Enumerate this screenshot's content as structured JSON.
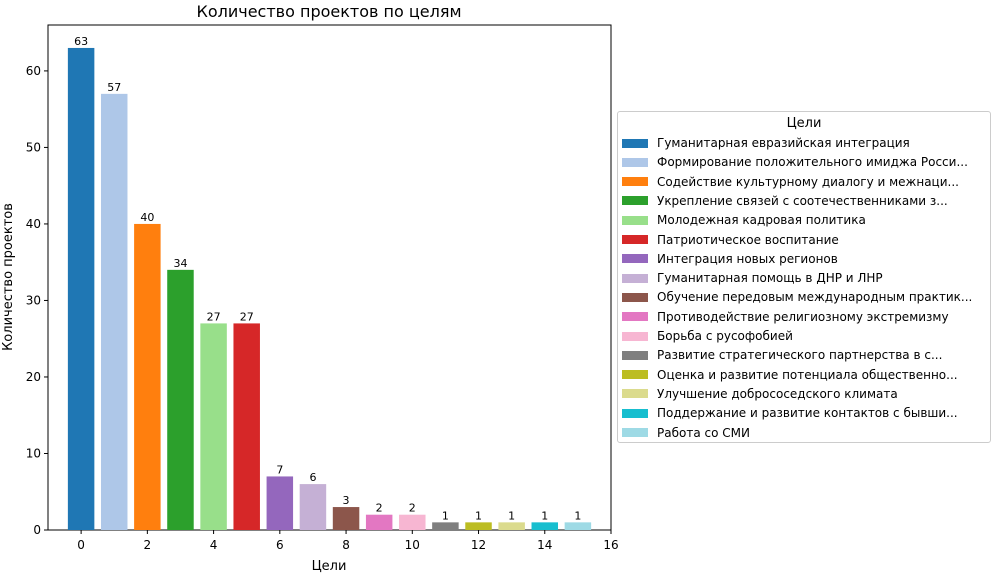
{
  "chart_data": {
    "type": "bar",
    "title": "Количество проектов по целям",
    "xlabel": "Цели",
    "ylabel": "Количество проектов",
    "xlim": [
      -1,
      16
    ],
    "ylim": [
      0,
      66
    ],
    "xticks": [
      "0",
      "2",
      "4",
      "6",
      "8",
      "10",
      "12",
      "14",
      "16"
    ],
    "yticks": [
      "0",
      "10",
      "20",
      "30",
      "40",
      "50",
      "60"
    ],
    "grid": false,
    "legend_title": "Цели",
    "legend_position": "right",
    "x": [
      0,
      1,
      2,
      3,
      4,
      5,
      6,
      7,
      8,
      9,
      10,
      11,
      12,
      13,
      14,
      15
    ],
    "values": [
      63,
      57,
      40,
      34,
      27,
      27,
      7,
      6,
      3,
      2,
      2,
      1,
      1,
      1,
      1,
      1
    ],
    "data_labels": [
      "63",
      "57",
      "40",
      "34",
      "27",
      "27",
      "7",
      "6",
      "3",
      "2",
      "2",
      "1",
      "1",
      "1",
      "1",
      "1"
    ],
    "categories": [
      "Гуманитарная евразийская интеграция",
      "Формирование положительного имиджа Росси...",
      "Содействие культурному диалогу и межнаци...",
      "Укрепление связей с соотечественниками з...",
      "Молодежная кадровая политика",
      "Патриотическое воспитание",
      "Интеграция новых регионов",
      "Гуманитарная помощь в ДНР и ЛНР",
      "Обучение передовым международным практик...",
      "Противодействие религиозному экстремизму",
      "Борьба с русофобией",
      "Развитие стратегического партнерства в с...",
      "Оценка и развитие потенциала общественно...",
      "Улучшение добрососедского климата",
      "Поддержание и развитие контактов с бывши...",
      "Работа со СМИ"
    ],
    "colors": [
      "#1f77b4",
      "#aec7e8",
      "#ff7f0e",
      "#2ca02c",
      "#98df8a",
      "#d62728",
      "#9467bd",
      "#c5b0d5",
      "#8c564b",
      "#e377c2",
      "#f7b6d2",
      "#7f7f7f",
      "#bcbd22",
      "#dbdb8d",
      "#17becf",
      "#9edae5"
    ]
  }
}
